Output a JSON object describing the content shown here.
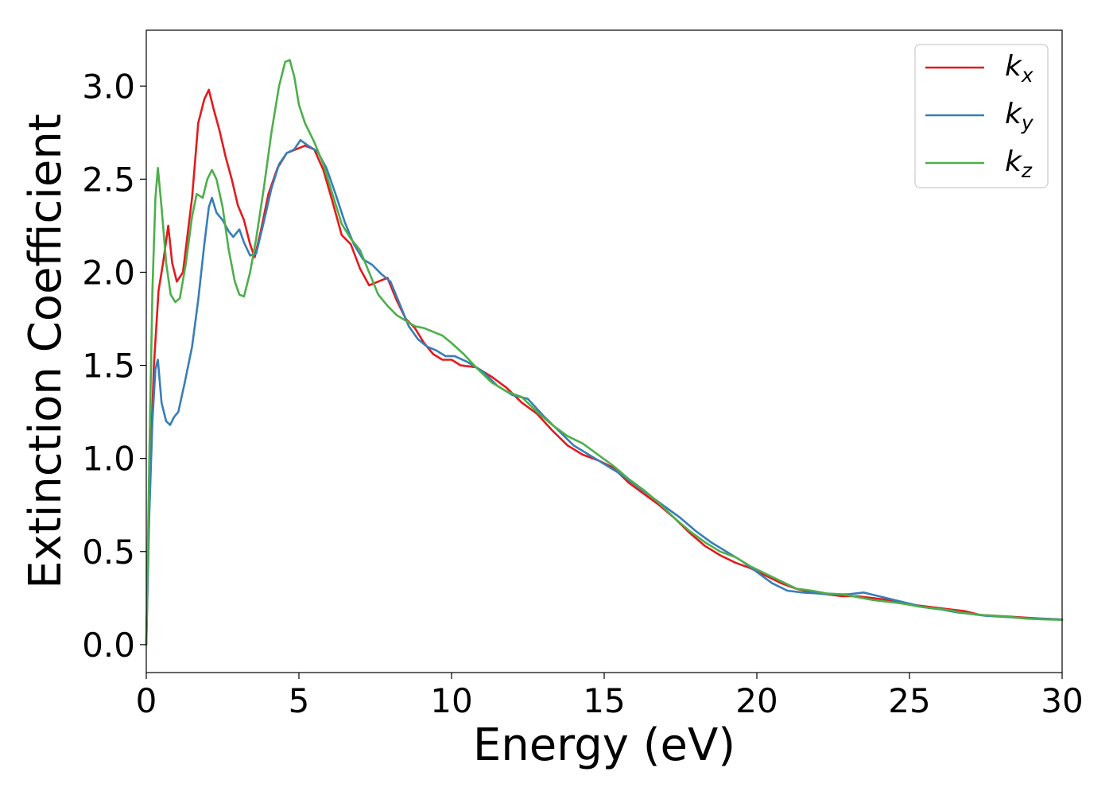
{
  "chart_data": {
    "type": "line",
    "title": "",
    "xlabel": "Energy (eV)",
    "ylabel": "Extinction Coefficient",
    "xlim": [
      0,
      30
    ],
    "ylim": [
      -0.15,
      3.3
    ],
    "xticks": [
      0,
      5,
      10,
      15,
      20,
      25,
      30
    ],
    "xtick_labels": [
      "0",
      "5",
      "10",
      "15",
      "20",
      "25",
      "30"
    ],
    "yticks": [
      0.0,
      0.5,
      1.0,
      1.5,
      2.0,
      2.5,
      3.0
    ],
    "ytick_labels": [
      "0.0",
      "0.5",
      "1.0",
      "1.5",
      "2.0",
      "2.5",
      "3.0"
    ],
    "grid": false,
    "legend_position": "top-right",
    "series": [
      {
        "name": "k",
        "subscript": "x",
        "color": "#e41a1c",
        "points": [
          [
            0,
            0.0
          ],
          [
            0.1,
            0.8
          ],
          [
            0.25,
            1.5
          ],
          [
            0.4,
            1.9
          ],
          [
            0.55,
            2.05
          ],
          [
            0.72,
            2.25
          ],
          [
            0.85,
            2.05
          ],
          [
            1.0,
            1.95
          ],
          [
            1.2,
            2.0
          ],
          [
            1.5,
            2.4
          ],
          [
            1.7,
            2.8
          ],
          [
            1.9,
            2.93
          ],
          [
            2.05,
            2.98
          ],
          [
            2.2,
            2.88
          ],
          [
            2.4,
            2.76
          ],
          [
            2.6,
            2.62
          ],
          [
            2.8,
            2.5
          ],
          [
            3.0,
            2.36
          ],
          [
            3.2,
            2.28
          ],
          [
            3.4,
            2.15
          ],
          [
            3.55,
            2.08
          ],
          [
            3.75,
            2.22
          ],
          [
            4.0,
            2.42
          ],
          [
            4.3,
            2.56
          ],
          [
            4.6,
            2.64
          ],
          [
            4.9,
            2.66
          ],
          [
            5.2,
            2.68
          ],
          [
            5.5,
            2.66
          ],
          [
            5.8,
            2.55
          ],
          [
            6.1,
            2.38
          ],
          [
            6.4,
            2.2
          ],
          [
            6.7,
            2.15
          ],
          [
            7.0,
            2.02
          ],
          [
            7.3,
            1.93
          ],
          [
            7.6,
            1.95
          ],
          [
            7.9,
            1.97
          ],
          [
            8.2,
            1.85
          ],
          [
            8.5,
            1.75
          ],
          [
            8.8,
            1.7
          ],
          [
            9.1,
            1.62
          ],
          [
            9.4,
            1.56
          ],
          [
            9.7,
            1.53
          ],
          [
            10.0,
            1.53
          ],
          [
            10.3,
            1.5
          ],
          [
            10.8,
            1.49
          ],
          [
            11.3,
            1.44
          ],
          [
            11.8,
            1.38
          ],
          [
            12.3,
            1.3
          ],
          [
            12.8,
            1.24
          ],
          [
            13.3,
            1.15
          ],
          [
            13.8,
            1.07
          ],
          [
            14.3,
            1.02
          ],
          [
            14.8,
            0.99
          ],
          [
            15.3,
            0.95
          ],
          [
            15.8,
            0.87
          ],
          [
            16.3,
            0.81
          ],
          [
            16.8,
            0.75
          ],
          [
            17.3,
            0.68
          ],
          [
            17.8,
            0.6
          ],
          [
            18.3,
            0.53
          ],
          [
            18.8,
            0.48
          ],
          [
            19.3,
            0.44
          ],
          [
            19.8,
            0.41
          ],
          [
            20.3,
            0.37
          ],
          [
            20.8,
            0.33
          ],
          [
            21.3,
            0.3
          ],
          [
            21.8,
            0.28
          ],
          [
            22.3,
            0.27
          ],
          [
            22.8,
            0.26
          ],
          [
            23.3,
            0.26
          ],
          [
            23.8,
            0.25
          ],
          [
            24.3,
            0.24
          ],
          [
            24.8,
            0.22
          ],
          [
            25.3,
            0.21
          ],
          [
            25.8,
            0.2
          ],
          [
            26.3,
            0.19
          ],
          [
            26.8,
            0.18
          ],
          [
            27.3,
            0.16
          ],
          [
            27.8,
            0.155
          ],
          [
            28.3,
            0.15
          ],
          [
            28.8,
            0.145
          ],
          [
            29.3,
            0.14
          ],
          [
            30.0,
            0.135
          ]
        ]
      },
      {
        "name": "k",
        "subscript": "y",
        "color": "#377eb8",
        "points": [
          [
            0,
            0.0
          ],
          [
            0.1,
            0.7
          ],
          [
            0.2,
            1.2
          ],
          [
            0.3,
            1.48
          ],
          [
            0.38,
            1.53
          ],
          [
            0.5,
            1.3
          ],
          [
            0.65,
            1.2
          ],
          [
            0.78,
            1.18
          ],
          [
            0.9,
            1.22
          ],
          [
            1.05,
            1.25
          ],
          [
            1.25,
            1.4
          ],
          [
            1.5,
            1.6
          ],
          [
            1.7,
            1.85
          ],
          [
            1.9,
            2.15
          ],
          [
            2.05,
            2.35
          ],
          [
            2.15,
            2.4
          ],
          [
            2.3,
            2.32
          ],
          [
            2.5,
            2.28
          ],
          [
            2.7,
            2.22
          ],
          [
            2.85,
            2.19
          ],
          [
            3.05,
            2.23
          ],
          [
            3.2,
            2.16
          ],
          [
            3.4,
            2.09
          ],
          [
            3.6,
            2.1
          ],
          [
            3.85,
            2.27
          ],
          [
            4.1,
            2.45
          ],
          [
            4.35,
            2.58
          ],
          [
            4.6,
            2.64
          ],
          [
            4.85,
            2.66
          ],
          [
            5.05,
            2.71
          ],
          [
            5.3,
            2.68
          ],
          [
            5.6,
            2.65
          ],
          [
            5.9,
            2.56
          ],
          [
            6.2,
            2.42
          ],
          [
            6.5,
            2.27
          ],
          [
            6.8,
            2.15
          ],
          [
            7.1,
            2.07
          ],
          [
            7.4,
            2.04
          ],
          [
            7.7,
            1.99
          ],
          [
            8.0,
            1.95
          ],
          [
            8.3,
            1.83
          ],
          [
            8.6,
            1.71
          ],
          [
            8.9,
            1.64
          ],
          [
            9.2,
            1.6
          ],
          [
            9.5,
            1.58
          ],
          [
            9.8,
            1.55
          ],
          [
            10.1,
            1.55
          ],
          [
            10.5,
            1.52
          ],
          [
            11.0,
            1.47
          ],
          [
            11.5,
            1.39
          ],
          [
            12.0,
            1.34
          ],
          [
            12.5,
            1.32
          ],
          [
            13.0,
            1.23
          ],
          [
            13.5,
            1.15
          ],
          [
            14.0,
            1.07
          ],
          [
            14.5,
            1.02
          ],
          [
            15.0,
            0.97
          ],
          [
            15.5,
            0.92
          ],
          [
            16.0,
            0.86
          ],
          [
            16.5,
            0.8
          ],
          [
            17.0,
            0.74
          ],
          [
            17.5,
            0.68
          ],
          [
            18.0,
            0.61
          ],
          [
            18.5,
            0.55
          ],
          [
            19.0,
            0.5
          ],
          [
            19.5,
            0.45
          ],
          [
            20.0,
            0.39
          ],
          [
            20.5,
            0.33
          ],
          [
            21.0,
            0.29
          ],
          [
            21.5,
            0.28
          ],
          [
            22.0,
            0.275
          ],
          [
            22.5,
            0.27
          ],
          [
            23.0,
            0.27
          ],
          [
            23.5,
            0.28
          ],
          [
            24.0,
            0.26
          ],
          [
            24.5,
            0.24
          ],
          [
            25.0,
            0.22
          ],
          [
            25.5,
            0.2
          ],
          [
            26.0,
            0.19
          ],
          [
            26.5,
            0.175
          ],
          [
            27.0,
            0.165
          ],
          [
            27.5,
            0.155
          ],
          [
            28.0,
            0.15
          ],
          [
            28.5,
            0.145
          ],
          [
            29.0,
            0.14
          ],
          [
            29.5,
            0.138
          ],
          [
            30.0,
            0.135
          ]
        ]
      },
      {
        "name": "k",
        "subscript": "z",
        "color": "#4daf4a",
        "points": [
          [
            0,
            0.0
          ],
          [
            0.1,
            1.0
          ],
          [
            0.2,
            1.9
          ],
          [
            0.3,
            2.4
          ],
          [
            0.38,
            2.56
          ],
          [
            0.5,
            2.35
          ],
          [
            0.65,
            2.05
          ],
          [
            0.8,
            1.88
          ],
          [
            0.95,
            1.84
          ],
          [
            1.1,
            1.86
          ],
          [
            1.3,
            2.05
          ],
          [
            1.5,
            2.3
          ],
          [
            1.65,
            2.42
          ],
          [
            1.85,
            2.4
          ],
          [
            2.0,
            2.5
          ],
          [
            2.15,
            2.55
          ],
          [
            2.3,
            2.5
          ],
          [
            2.5,
            2.35
          ],
          [
            2.7,
            2.12
          ],
          [
            2.9,
            1.95
          ],
          [
            3.05,
            1.88
          ],
          [
            3.2,
            1.87
          ],
          [
            3.4,
            2.0
          ],
          [
            3.6,
            2.18
          ],
          [
            3.85,
            2.45
          ],
          [
            4.1,
            2.75
          ],
          [
            4.35,
            3.0
          ],
          [
            4.55,
            3.13
          ],
          [
            4.7,
            3.14
          ],
          [
            4.85,
            3.05
          ],
          [
            5.0,
            2.9
          ],
          [
            5.2,
            2.8
          ],
          [
            5.5,
            2.7
          ],
          [
            5.8,
            2.58
          ],
          [
            6.1,
            2.42
          ],
          [
            6.4,
            2.26
          ],
          [
            6.7,
            2.18
          ],
          [
            7.0,
            2.12
          ],
          [
            7.3,
            2.0
          ],
          [
            7.6,
            1.88
          ],
          [
            7.9,
            1.82
          ],
          [
            8.2,
            1.77
          ],
          [
            8.5,
            1.74
          ],
          [
            8.8,
            1.71
          ],
          [
            9.1,
            1.7
          ],
          [
            9.4,
            1.68
          ],
          [
            9.7,
            1.66
          ],
          [
            10.0,
            1.62
          ],
          [
            10.4,
            1.56
          ],
          [
            10.8,
            1.49
          ],
          [
            11.3,
            1.41
          ],
          [
            11.8,
            1.36
          ],
          [
            12.3,
            1.33
          ],
          [
            12.8,
            1.25
          ],
          [
            13.3,
            1.18
          ],
          [
            13.8,
            1.12
          ],
          [
            14.3,
            1.08
          ],
          [
            14.8,
            1.02
          ],
          [
            15.3,
            0.96
          ],
          [
            15.8,
            0.89
          ],
          [
            16.3,
            0.83
          ],
          [
            16.8,
            0.76
          ],
          [
            17.3,
            0.68
          ],
          [
            17.8,
            0.61
          ],
          [
            18.3,
            0.55
          ],
          [
            18.8,
            0.5
          ],
          [
            19.3,
            0.47
          ],
          [
            19.8,
            0.42
          ],
          [
            20.3,
            0.38
          ],
          [
            20.8,
            0.34
          ],
          [
            21.3,
            0.3
          ],
          [
            21.8,
            0.29
          ],
          [
            22.3,
            0.275
          ],
          [
            22.8,
            0.27
          ],
          [
            23.3,
            0.255
          ],
          [
            23.8,
            0.24
          ],
          [
            24.3,
            0.23
          ],
          [
            24.8,
            0.22
          ],
          [
            25.3,
            0.205
          ],
          [
            25.8,
            0.195
          ],
          [
            26.3,
            0.185
          ],
          [
            26.8,
            0.17
          ],
          [
            27.3,
            0.16
          ],
          [
            27.8,
            0.155
          ],
          [
            28.3,
            0.148
          ],
          [
            28.8,
            0.14
          ],
          [
            29.3,
            0.136
          ],
          [
            30.0,
            0.133
          ]
        ]
      }
    ]
  }
}
